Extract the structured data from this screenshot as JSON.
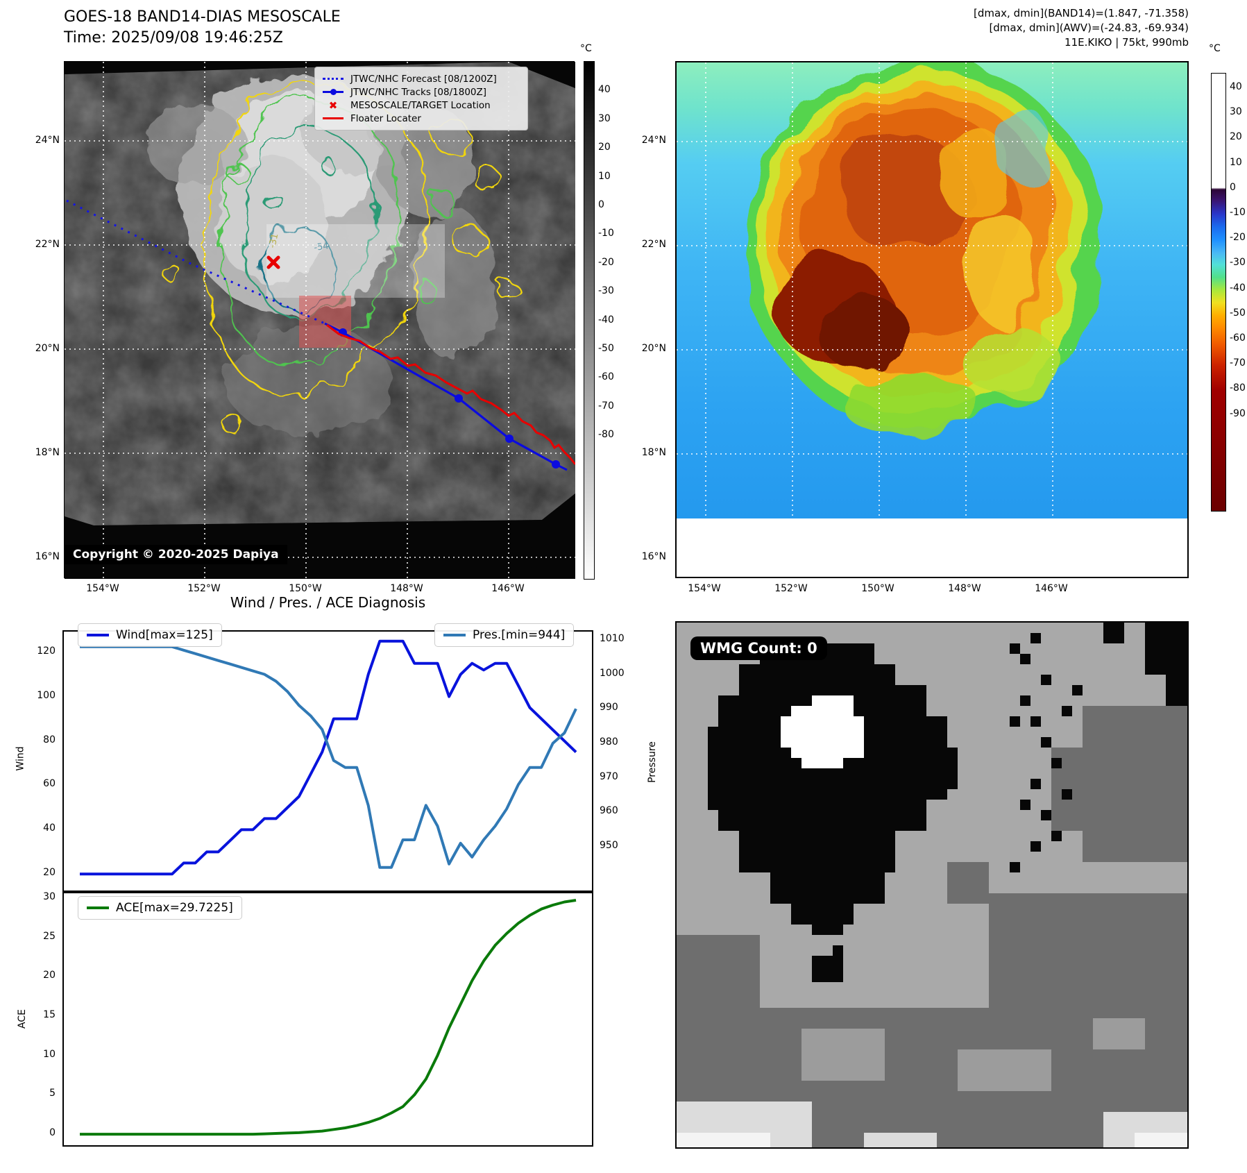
{
  "header": {
    "title": "GOES-18 BAND14-DIAS MESOSCALE",
    "time": "Time: 2025/09/08 19:46:25Z",
    "stats_line1": "[dmax, dmin](BAND14)=(1.847, -71.358)",
    "stats_line2": "[dmax, dmin](AWV)=(-24.83, -69.934)",
    "storm_line": "11E.KIKO | 75kt, 990mb"
  },
  "map_band14": {
    "legend": [
      {
        "label": "JTWC/NHC Forecast [08/1200Z]",
        "style": "dotted-blue"
      },
      {
        "label": "JTWC/NHC Tracks [08/1800Z]",
        "style": "solid-blue-marker"
      },
      {
        "label": "MESOSCALE/TARGET Location",
        "style": "red-x"
      },
      {
        "label": "Floater Locater",
        "style": "solid-red"
      }
    ],
    "copyright": "Copyright © 2020-2025 Dapiya",
    "contour_labels": [
      "-31",
      "-54"
    ],
    "x_ticks": [
      "154°W",
      "152°W",
      "150°W",
      "148°W",
      "146°W"
    ],
    "y_ticks": [
      "24°N",
      "22°N",
      "20°N",
      "18°N",
      "16°N"
    ],
    "colorbar": {
      "unit": "°C",
      "ticks": [
        40,
        30,
        20,
        10,
        0,
        -10,
        -20,
        -30,
        -40,
        -50,
        -60,
        -70,
        -80
      ]
    }
  },
  "map_awv": {
    "x_ticks": [
      "154°W",
      "152°W",
      "150°W",
      "148°W",
      "146°W"
    ],
    "y_ticks": [
      "24°N",
      "22°N",
      "20°N",
      "18°N",
      "16°N"
    ],
    "colorbar": {
      "unit": "°C",
      "ticks": [
        40,
        30,
        20,
        10,
        0,
        -10,
        -20,
        -30,
        -40,
        -50,
        -60,
        -70,
        -80,
        -90
      ]
    }
  },
  "charts": {
    "title": "Wind / Pres. / ACE Diagnosis",
    "wind_legend": "Wind[max=125]",
    "pres_legend": "Pres.[min=944]",
    "ace_legend": "ACE[max=29.7225]",
    "wind_axis": "Wind",
    "pressure_axis": "Pressure",
    "ace_axis": "ACE"
  },
  "wmg": {
    "count_label": "WMG Count: 0"
  },
  "chart_data": [
    {
      "type": "line",
      "title": "Wind / Pres. / ACE Diagnosis",
      "x_note": "time steps, axis unlabeled in figure",
      "x": [
        0,
        1,
        2,
        3,
        4,
        5,
        6,
        7,
        8,
        9,
        10,
        11,
        12,
        13,
        14,
        15,
        16,
        17,
        18,
        19,
        20,
        21,
        22,
        23,
        24,
        25,
        26,
        27,
        28,
        29,
        30,
        31,
        32,
        33,
        34,
        35,
        36,
        37,
        38,
        39,
        40,
        41,
        42,
        43
      ],
      "series": [
        {
          "name": "Wind[max=125]",
          "axis": "left",
          "color": "#0813dc",
          "values": [
            20,
            20,
            20,
            20,
            20,
            20,
            20,
            20,
            20,
            25,
            25,
            30,
            30,
            35,
            40,
            40,
            45,
            45,
            50,
            55,
            65,
            75,
            90,
            90,
            90,
            110,
            125,
            125,
            125,
            115,
            115,
            115,
            100,
            110,
            115,
            112,
            115,
            115,
            105,
            95,
            90,
            85,
            80,
            75
          ]
        },
        {
          "name": "Pres.[min=944]",
          "axis": "right",
          "color": "#3079b5",
          "values": [
            1008,
            1008,
            1008,
            1008,
            1008,
            1008,
            1008,
            1008,
            1008,
            1007,
            1006,
            1005,
            1004,
            1003,
            1002,
            1001,
            1000,
            998,
            995,
            991,
            988,
            984,
            975,
            973,
            973,
            962,
            944,
            944,
            952,
            952,
            962,
            956,
            945,
            951,
            947,
            952,
            956,
            961,
            968,
            973,
            973,
            980,
            983,
            990
          ]
        }
      ],
      "ylabel_left": "Wind",
      "ylabel_right": "Pressure",
      "ylim_left": [
        12.6,
        129.3
      ],
      "ylim_right": [
        937.3,
        1012.4
      ],
      "yticks_left": [
        120,
        100,
        80,
        60,
        40,
        20
      ],
      "yticks_right": [
        1010,
        1000,
        990,
        980,
        970,
        960,
        950
      ],
      "grid": false,
      "legend_position": "upper left / upper right"
    },
    {
      "type": "line",
      "x": [
        0,
        1,
        2,
        3,
        4,
        5,
        6,
        7,
        8,
        9,
        10,
        11,
        12,
        13,
        14,
        15,
        16,
        17,
        18,
        19,
        20,
        21,
        22,
        23,
        24,
        25,
        26,
        27,
        28,
        29,
        30,
        31,
        32,
        33,
        34,
        35,
        36,
        37,
        38,
        39,
        40,
        41,
        42,
        43
      ],
      "series": [
        {
          "name": "ACE[max=29.7225]",
          "color": "#0a7a0a",
          "values": [
            0,
            0,
            0,
            0,
            0,
            0,
            0,
            0,
            0,
            0,
            0,
            0,
            0,
            0,
            0,
            0,
            0.05,
            0.1,
            0.15,
            0.2,
            0.3,
            0.4,
            0.6,
            0.8,
            1.1,
            1.5,
            2,
            2.7,
            3.5,
            5,
            7,
            10,
            13.5,
            16.5,
            19.5,
            22,
            24,
            25.5,
            26.8,
            27.8,
            28.6,
            29.1,
            29.5,
            29.7225
          ]
        }
      ],
      "ylabel": "ACE",
      "ylim": [
        -1.4,
        30.6
      ],
      "yticks": [
        30,
        25,
        20,
        15,
        10,
        5,
        0
      ],
      "grid": false,
      "legend_position": "upper left"
    }
  ]
}
